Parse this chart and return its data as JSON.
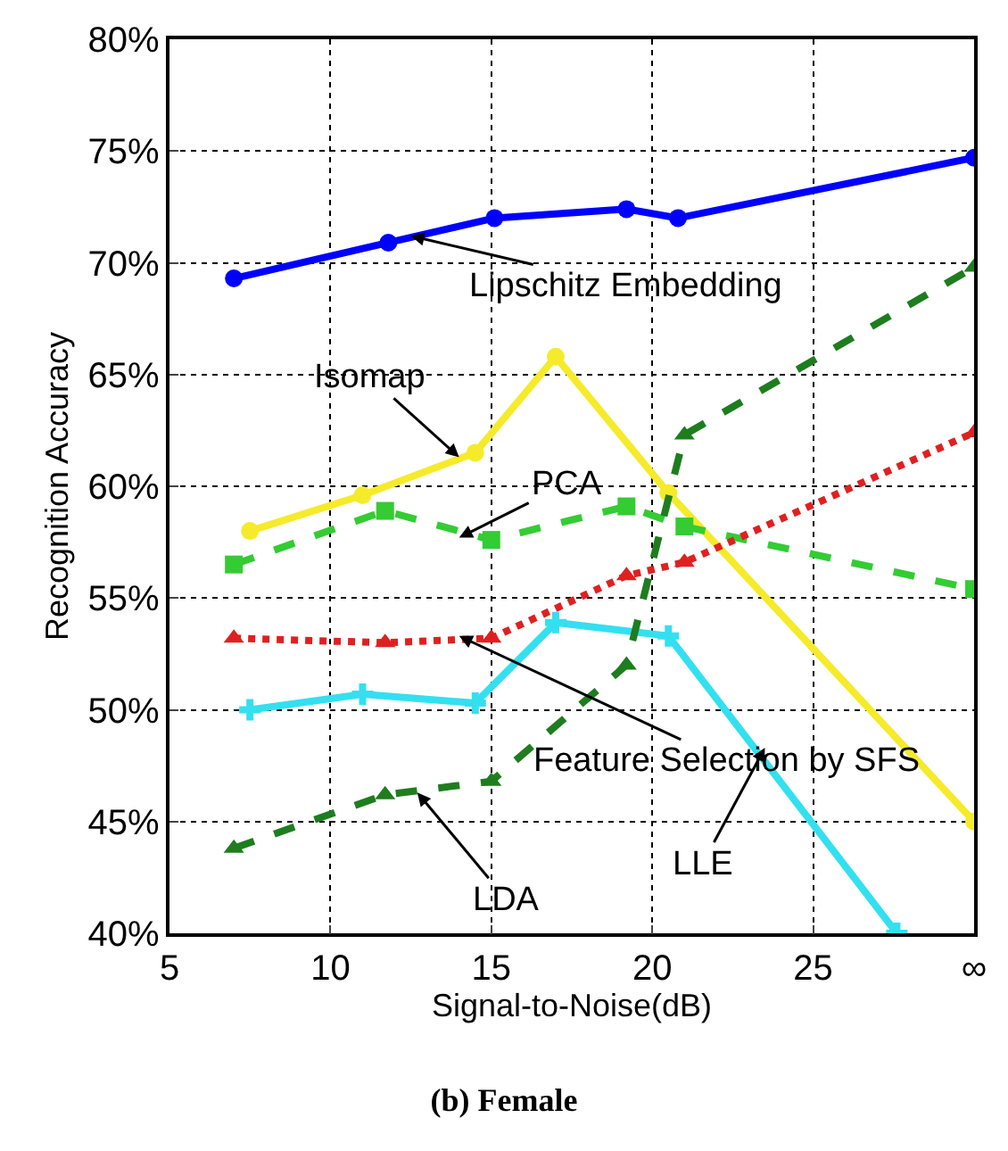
{
  "chart_data": {
    "type": "line",
    "title": "(b) Female",
    "xlabel": "Signal-to-Noise(dB)",
    "ylabel": "Recognition Accuracy",
    "xlim": [
      5,
      30
    ],
    "xticks": [
      5,
      10,
      15,
      20,
      25,
      {
        "value": 30,
        "label": "∞"
      }
    ],
    "ylim": [
      40,
      80
    ],
    "yticks": [
      {
        "value": 40,
        "label": "40%"
      },
      {
        "value": 45,
        "label": "45%"
      },
      {
        "value": 50,
        "label": "50%"
      },
      {
        "value": 55,
        "label": "55%"
      },
      {
        "value": 60,
        "label": "60%"
      },
      {
        "value": 65,
        "label": "65%"
      },
      {
        "value": 70,
        "label": "70%"
      },
      {
        "value": 75,
        "label": "75%"
      },
      {
        "value": 80,
        "label": "80%"
      }
    ],
    "grid": true,
    "series": [
      {
        "color": "#0000ff",
        "marker": "circle",
        "line_style": "solid",
        "x": [
          7,
          11.8,
          15.1,
          19.2,
          20.8,
          30
        ],
        "values": [
          69.3,
          70.9,
          72.0,
          72.4,
          72.0,
          74.7
        ]
      },
      {
        "color": "#f5eb2a",
        "marker": "circle",
        "line_style": "solid",
        "x": [
          7.5,
          11,
          14.5,
          17,
          20.5,
          30
        ],
        "values": [
          58.0,
          59.6,
          61.5,
          65.8,
          59.7,
          45.0
        ]
      },
      {
        "color": "#33cc33",
        "marker": "square",
        "line_style": "dashed",
        "x": [
          7,
          11.7,
          15,
          19.2,
          21,
          30
        ],
        "values": [
          56.5,
          58.9,
          57.6,
          59.1,
          58.2,
          55.4
        ]
      },
      {
        "color": "#e02020",
        "marker": "triangle",
        "line_style": "dotted",
        "x": [
          7,
          11.7,
          15,
          19.2,
          21,
          30
        ],
        "values": [
          53.2,
          53.0,
          53.2,
          56.0,
          56.6,
          62.4
        ]
      },
      {
        "color": "#33e0f0",
        "marker": "cross",
        "line_style": "solid",
        "x": [
          7.5,
          11,
          14.5,
          17,
          20.5,
          27.6
        ],
        "values": [
          50.0,
          50.7,
          50.3,
          53.9,
          53.3,
          40.0
        ]
      },
      {
        "color": "#1e7d1e",
        "marker": "triangle",
        "line_style": "dashed",
        "x": [
          7,
          11.7,
          15,
          19.2,
          21,
          30
        ],
        "values": [
          43.8,
          46.2,
          46.8,
          52.0,
          62.3,
          69.8
        ]
      }
    ],
    "annotations": [
      {
        "text": "Lipschitz Embedding",
        "x": 12.5,
        "y": 71.2
      },
      {
        "text": "Isomap",
        "x": 14,
        "y": 61.3
      },
      {
        "text": "PCA",
        "x": 14,
        "y": 57.7
      },
      {
        "text": "Feature Selection by SFS",
        "x": 14,
        "y": 53.3
      },
      {
        "text": "LLE",
        "x": 23.5,
        "y": 48.3
      },
      {
        "text": "LDA",
        "x": 12.7,
        "y": 46.3
      }
    ]
  }
}
